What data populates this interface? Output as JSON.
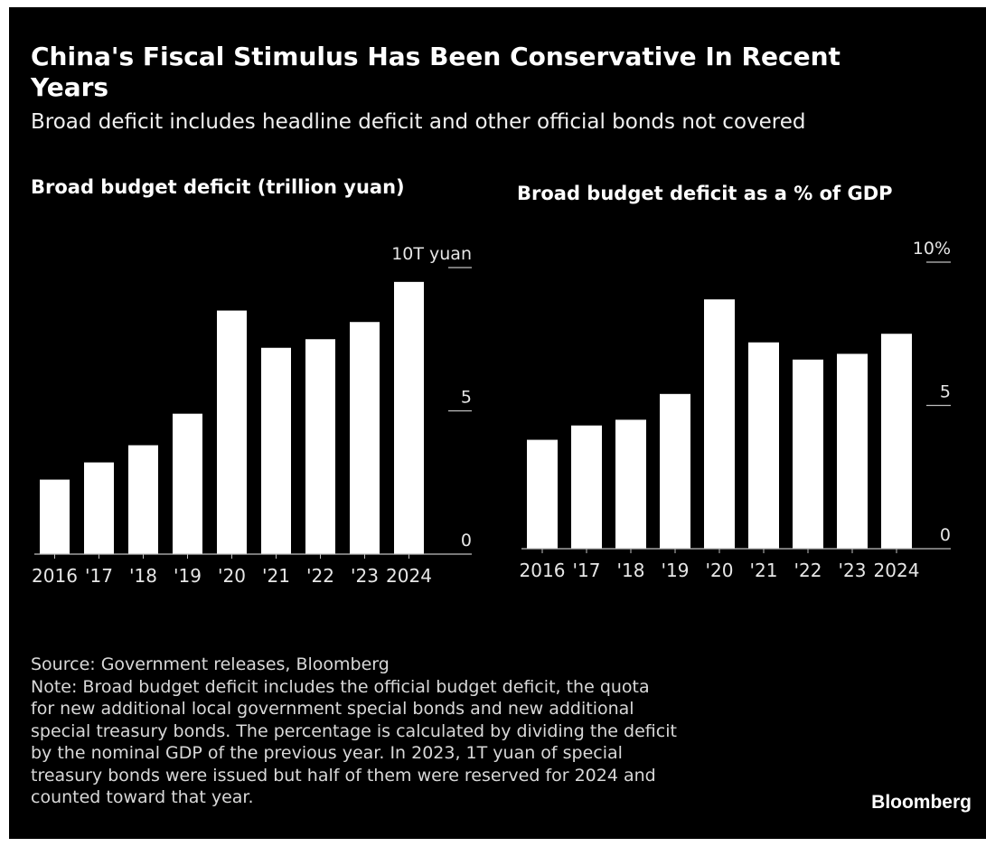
{
  "title": "China's Fiscal Stimulus Has Been Conservative In Recent Years",
  "subtitle": "Broad deficit includes headline deficit and other official bonds not covered",
  "colors": {
    "background": "#000000",
    "bar": "#ffffff",
    "text": "#ffffff",
    "axis": "#bfbfbf"
  },
  "chart_data": [
    {
      "type": "bar",
      "title": "Broad budget deficit (trillion yuan)",
      "categories": [
        "2016",
        "'17",
        "'18",
        "'19",
        "'20",
        "'21",
        "'22",
        "'23",
        "2024"
      ],
      "values": [
        2.6,
        3.2,
        3.8,
        4.9,
        8.5,
        7.2,
        7.5,
        8.1,
        9.5
      ],
      "ylim": [
        0,
        10
      ],
      "yticks": [
        {
          "value": 10,
          "label": "10T yuan"
        },
        {
          "value": 5,
          "label": "5"
        },
        {
          "value": 0,
          "label": "0"
        }
      ],
      "xlabel": "",
      "ylabel": "",
      "grid": false,
      "y_axis_side": "right"
    },
    {
      "type": "bar",
      "title": "Broad budget deficit as a % of GDP",
      "categories": [
        "2016",
        "'17",
        "'18",
        "'19",
        "'20",
        "'21",
        "'22",
        "'23",
        "2024"
      ],
      "values": [
        3.8,
        4.3,
        4.5,
        5.4,
        8.7,
        7.2,
        6.6,
        6.8,
        7.5
      ],
      "ylim": [
        0,
        10
      ],
      "yticks": [
        {
          "value": 10,
          "label": "10%"
        },
        {
          "value": 5,
          "label": "5"
        },
        {
          "value": 0,
          "label": "0"
        }
      ],
      "xlabel": "",
      "ylabel": "",
      "grid": false,
      "y_axis_side": "right"
    }
  ],
  "source": "Source: Government releases, Bloomberg",
  "note_lines": [
    "Note: Broad budget deficit includes the official budget deficit, the quota",
    "for new additional local government special bonds and new additional",
    "special treasury bonds. The percentage is calculated by dividing the deficit",
    "by the nominal GDP of the previous year. In 2023, 1T yuan of special",
    "treasury bonds were issued but half of them were reserved for 2024 and",
    "counted toward that year."
  ],
  "brand": "Bloomberg"
}
